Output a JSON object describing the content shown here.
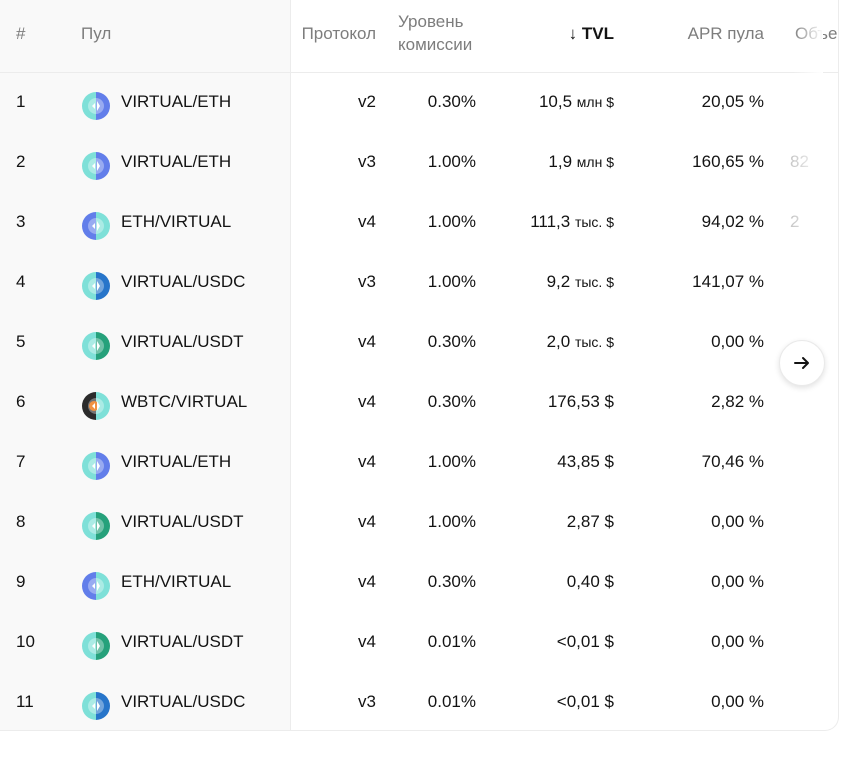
{
  "header": {
    "index": "#",
    "pool": "Пул",
    "protocol": "Протокол",
    "fee_line1": "Уровень",
    "fee_line2": "комиссии",
    "tvl_arrow": "↓",
    "tvl": "TVL",
    "apr": "APR пула",
    "volume": "Объе"
  },
  "rows": [
    {
      "index": "1",
      "pair": "VIRTUAL/ETH",
      "icon": "virtual-eth-icon",
      "protocol": "v2",
      "fee": "0.30%",
      "tvl_num": "10,5",
      "tvl_unit": "млн $",
      "apr": "20,05 %",
      "volume": ""
    },
    {
      "index": "2",
      "pair": "VIRTUAL/ETH",
      "icon": "virtual-eth-icon",
      "protocol": "v3",
      "fee": "1.00%",
      "tvl_num": "1,9",
      "tvl_unit": "млн $",
      "apr": "160,65 %",
      "volume": "82"
    },
    {
      "index": "3",
      "pair": "ETH/VIRTUAL",
      "icon": "eth-virtual-icon",
      "protocol": "v4",
      "fee": "1.00%",
      "tvl_num": "111,3",
      "tvl_unit": "тыс. $",
      "apr": "94,02 %",
      "volume": "2"
    },
    {
      "index": "4",
      "pair": "VIRTUAL/USDC",
      "icon": "virtual-usdc-icon",
      "protocol": "v3",
      "fee": "1.00%",
      "tvl_num": "9,2",
      "tvl_unit": "тыс. $",
      "apr": "141,07 %",
      "volume": ""
    },
    {
      "index": "5",
      "pair": "VIRTUAL/USDT",
      "icon": "virtual-usdt-icon",
      "protocol": "v4",
      "fee": "0.30%",
      "tvl_num": "2,0",
      "tvl_unit": "тыс. $",
      "apr": "0,00 %",
      "volume": ""
    },
    {
      "index": "6",
      "pair": "WBTC/VIRTUAL",
      "icon": "wbtc-virtual-icon",
      "protocol": "v4",
      "fee": "0.30%",
      "tvl_num": "176,53 $",
      "tvl_unit": "",
      "apr": "2,82 %",
      "volume": ""
    },
    {
      "index": "7",
      "pair": "VIRTUAL/ETH",
      "icon": "virtual-eth-icon",
      "protocol": "v4",
      "fee": "1.00%",
      "tvl_num": "43,85 $",
      "tvl_unit": "",
      "apr": "70,46 %",
      "volume": ""
    },
    {
      "index": "8",
      "pair": "VIRTUAL/USDT",
      "icon": "virtual-usdt-icon",
      "protocol": "v4",
      "fee": "1.00%",
      "tvl_num": "2,87 $",
      "tvl_unit": "",
      "apr": "0,00 %",
      "volume": ""
    },
    {
      "index": "9",
      "pair": "ETH/VIRTUAL",
      "icon": "eth-virtual-icon",
      "protocol": "v4",
      "fee": "0.30%",
      "tvl_num": "0,40 $",
      "tvl_unit": "",
      "apr": "0,00 %",
      "volume": ""
    },
    {
      "index": "10",
      "pair": "VIRTUAL/USDT",
      "icon": "virtual-usdt-icon",
      "protocol": "v4",
      "fee": "0.01%",
      "tvl_num": "<0,01 $",
      "tvl_unit": "",
      "apr": "0,00 %",
      "volume": ""
    },
    {
      "index": "11",
      "pair": "VIRTUAL/USDC",
      "icon": "virtual-usdc-icon",
      "protocol": "v3",
      "fee": "0.01%",
      "tvl_num": "<0,01 $",
      "tvl_unit": "",
      "apr": "0,00 %",
      "volume": ""
    }
  ],
  "scroll_button_icon": "arrow-right-icon",
  "colors": {
    "eth": "#627EEA",
    "usdc": "#2775CA",
    "usdt": "#26A17B",
    "virtual": "#7ee0d8",
    "wbtc": "#f09242"
  }
}
